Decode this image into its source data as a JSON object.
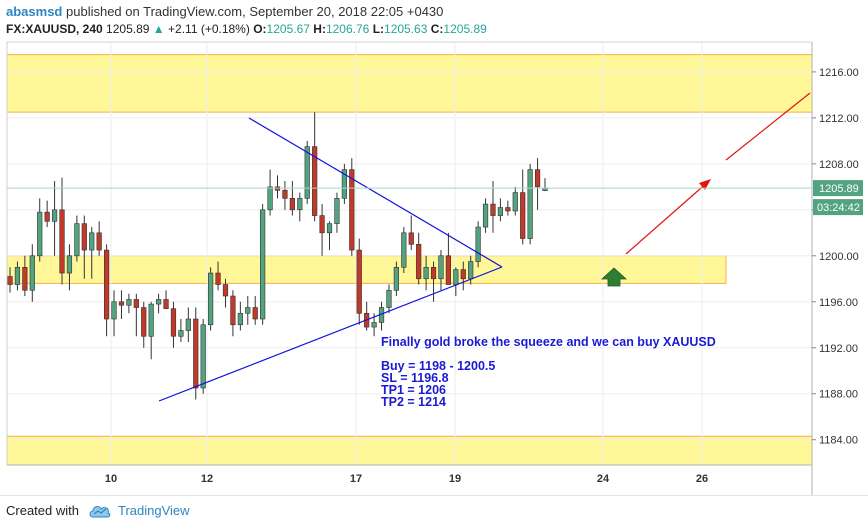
{
  "header": {
    "author": "abasmsd",
    "published_text": "published on TradingView.com, September 20, 2018 22:05 +0430",
    "symbol": "FX:XAUUSD, 240",
    "last": "1205.89",
    "change": "+2.11 (+0.18%)",
    "o_label": "O:",
    "o_value": "1205.67",
    "h_label": "H:",
    "h_value": "1206.76",
    "l_label": "L:",
    "l_value": "1205.63",
    "c_label": "C:",
    "c_value": "1205.89"
  },
  "chart_data": {
    "type": "candlestick",
    "title": "",
    "xlabel": "",
    "ylabel": "",
    "ylim": [
      1181.8,
      1218.6
    ],
    "y_ticks": [
      "1216.00",
      "1212.00",
      "1208.00",
      "1204.00",
      "1200.00",
      "1196.00",
      "1192.00",
      "1188.00",
      "1184.00"
    ],
    "x_ticks": [
      "10",
      "12",
      "17",
      "19",
      "24",
      "26"
    ],
    "last_price_label": "1205.89",
    "countdown_label": "03:24:42",
    "candles_ohlc": [
      [
        1198.2,
        1199.0,
        1196.8,
        1197.5
      ],
      [
        1197.5,
        1199.5,
        1197.0,
        1199.0
      ],
      [
        1199.0,
        1200.0,
        1196.5,
        1197.0
      ],
      [
        1197.0,
        1201.0,
        1196.0,
        1200.0
      ],
      [
        1200.0,
        1205.0,
        1199.5,
        1203.8
      ],
      [
        1203.8,
        1204.8,
        1202.5,
        1203.0
      ],
      [
        1203.0,
        1206.5,
        1200.0,
        1204.0
      ],
      [
        1204.0,
        1206.8,
        1197.5,
        1198.5
      ],
      [
        1198.5,
        1201.0,
        1197.0,
        1200.0
      ],
      [
        1200.0,
        1203.5,
        1199.5,
        1202.8
      ],
      [
        1202.8,
        1203.5,
        1198.0,
        1200.5
      ],
      [
        1200.5,
        1202.5,
        1198.0,
        1202.0
      ],
      [
        1202.0,
        1203.0,
        1200.0,
        1200.5
      ],
      [
        1200.5,
        1201.0,
        1193.0,
        1194.5
      ],
      [
        1194.5,
        1197.0,
        1193.0,
        1196.0
      ],
      [
        1196.0,
        1197.0,
        1194.5,
        1195.7
      ],
      [
        1195.7,
        1196.7,
        1195.0,
        1196.2
      ],
      [
        1196.2,
        1196.7,
        1193.0,
        1195.5
      ],
      [
        1195.5,
        1196.0,
        1192.0,
        1193.0
      ],
      [
        1193.0,
        1196.0,
        1191.0,
        1195.8
      ],
      [
        1195.8,
        1196.7,
        1195.0,
        1196.2
      ],
      [
        1196.2,
        1197.0,
        1195.5,
        1195.4
      ],
      [
        1195.4,
        1196.0,
        1192.0,
        1193.0
      ],
      [
        1193.0,
        1194.5,
        1192.5,
        1193.5
      ],
      [
        1193.5,
        1195.5,
        1192.5,
        1194.5
      ],
      [
        1194.5,
        1195.5,
        1187.5,
        1188.5
      ],
      [
        1188.5,
        1194.5,
        1188.0,
        1194.0
      ],
      [
        1194.0,
        1199.0,
        1193.5,
        1198.5
      ],
      [
        1198.5,
        1199.5,
        1197.0,
        1197.5
      ],
      [
        1197.5,
        1198.0,
        1195.5,
        1196.5
      ],
      [
        1196.5,
        1197.0,
        1193.0,
        1194.0
      ],
      [
        1194.0,
        1196.0,
        1193.5,
        1195.0
      ],
      [
        1195.0,
        1196.5,
        1194.0,
        1195.5
      ],
      [
        1195.5,
        1196.5,
        1194.0,
        1194.5
      ],
      [
        1194.5,
        1204.5,
        1194.0,
        1204.0
      ],
      [
        1204.0,
        1207.5,
        1203.5,
        1206.0
      ],
      [
        1206.0,
        1207.0,
        1205.0,
        1205.7
      ],
      [
        1205.7,
        1206.5,
        1204.0,
        1205.0
      ],
      [
        1205.0,
        1206.5,
        1203.5,
        1204.0
      ],
      [
        1204.0,
        1205.5,
        1203.0,
        1205.0
      ],
      [
        1205.0,
        1210.0,
        1204.5,
        1209.5
      ],
      [
        1209.5,
        1212.5,
        1203.0,
        1203.5
      ],
      [
        1203.5,
        1204.5,
        1200.0,
        1202.0
      ],
      [
        1202.0,
        1203.0,
        1200.5,
        1202.8
      ],
      [
        1202.8,
        1205.5,
        1202.0,
        1205.0
      ],
      [
        1205.0,
        1208.0,
        1204.5,
        1207.5
      ],
      [
        1207.5,
        1208.5,
        1200.0,
        1200.5
      ],
      [
        1200.5,
        1201.5,
        1194.0,
        1195.0
      ],
      [
        1195.0,
        1196.0,
        1193.5,
        1193.8
      ],
      [
        1193.8,
        1195.0,
        1193.0,
        1194.2
      ],
      [
        1194.2,
        1196.0,
        1193.5,
        1195.5
      ],
      [
        1195.5,
        1197.5,
        1195.0,
        1197.0
      ],
      [
        1197.0,
        1199.5,
        1196.5,
        1199.0
      ],
      [
        1199.0,
        1202.5,
        1198.5,
        1202.0
      ],
      [
        1202.0,
        1203.5,
        1200.5,
        1201.0
      ],
      [
        1201.0,
        1202.0,
        1197.5,
        1198.0
      ],
      [
        1198.0,
        1200.0,
        1197.0,
        1199.0
      ],
      [
        1199.0,
        1199.5,
        1196.0,
        1198.0
      ],
      [
        1198.0,
        1200.5,
        1197.0,
        1200.0
      ],
      [
        1200.0,
        1202.0,
        1199.0,
        1197.5
      ],
      [
        1197.5,
        1199.0,
        1196.5,
        1198.8
      ],
      [
        1198.8,
        1199.5,
        1197.0,
        1198.0
      ],
      [
        1198.0,
        1200.0,
        1197.5,
        1199.5
      ],
      [
        1199.5,
        1203.0,
        1199.0,
        1202.5
      ],
      [
        1202.5,
        1205.0,
        1202.0,
        1204.5
      ],
      [
        1204.5,
        1206.5,
        1202.0,
        1203.5
      ],
      [
        1203.5,
        1205.0,
        1203.0,
        1204.2
      ],
      [
        1204.2,
        1204.8,
        1203.5,
        1203.9
      ],
      [
        1203.9,
        1206.0,
        1203.5,
        1205.5
      ],
      [
        1205.5,
        1207.5,
        1201.0,
        1201.5
      ],
      [
        1201.5,
        1208.0,
        1201.0,
        1207.5
      ],
      [
        1207.5,
        1208.5,
        1204.0,
        1206.0
      ],
      [
        1205.67,
        1206.76,
        1205.63,
        1205.89
      ]
    ],
    "zones": [
      {
        "from": 1212.5,
        "to": 1217.5
      },
      {
        "from": 1197.6,
        "to": 1200.0
      },
      {
        "from": 1181.8,
        "to": 1184.3
      }
    ],
    "annotations": {
      "headline": "Finally gold broke the squeeze and we can buy XAUUSD",
      "buy": "Buy = 1198 - 1200.5",
      "sl": "SL = 1196.8",
      "tp1": "TP1 = 1206",
      "tp2": "TP2 = 1214"
    },
    "colors": {
      "up": "#53a380",
      "down": "#c0392b",
      "zone_fill": "#fff476",
      "zone_border": "#f5b041",
      "trendline": "#1010e0",
      "projection": "#e3140c",
      "signal_arrow": "#2e7d32",
      "text": "#1a1ad6"
    }
  },
  "footer": {
    "created_with": "Created with",
    "brand": "TradingView"
  }
}
